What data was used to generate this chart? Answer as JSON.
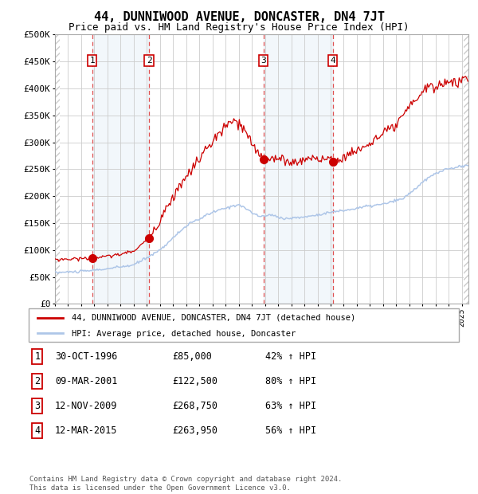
{
  "title": "44, DUNNIWOOD AVENUE, DONCASTER, DN4 7JT",
  "subtitle": "Price paid vs. HM Land Registry's House Price Index (HPI)",
  "title_fontsize": 11,
  "subtitle_fontsize": 9,
  "sale_years_float": [
    1996.833,
    2001.167,
    2009.875,
    2015.167
  ],
  "sale_prices": [
    85000,
    122500,
    268750,
    263950
  ],
  "sale_labels": [
    "1",
    "2",
    "3",
    "4"
  ],
  "legend_entries": [
    "44, DUNNIWOOD AVENUE, DONCASTER, DN4 7JT (detached house)",
    "HPI: Average price, detached house, Doncaster"
  ],
  "table_rows": [
    [
      "1",
      "30-OCT-1996",
      "£85,000",
      "42% ↑ HPI"
    ],
    [
      "2",
      "09-MAR-2001",
      "£122,500",
      "80% ↑ HPI"
    ],
    [
      "3",
      "12-NOV-2009",
      "£268,750",
      "63% ↑ HPI"
    ],
    [
      "4",
      "12-MAR-2015",
      "£263,950",
      "56% ↑ HPI"
    ]
  ],
  "footnote": "Contains HM Land Registry data © Crown copyright and database right 2024.\nThis data is licensed under the Open Government Licence v3.0.",
  "hpi_line_color": "#aec6e8",
  "price_line_color": "#cc0000",
  "dot_color": "#cc0000",
  "dashed_line_color": "#e05050",
  "shade_color": "#ddeeff",
  "grid_color": "#cccccc",
  "ylim": [
    0,
    500000
  ],
  "yticks": [
    0,
    50000,
    100000,
    150000,
    200000,
    250000,
    300000,
    350000,
    400000,
    450000,
    500000
  ],
  "xlim": [
    1994,
    2025.5
  ],
  "xtick_years": [
    1994,
    1995,
    1996,
    1997,
    1998,
    1999,
    2000,
    2001,
    2002,
    2003,
    2004,
    2005,
    2006,
    2007,
    2008,
    2009,
    2010,
    2011,
    2012,
    2013,
    2014,
    2015,
    2016,
    2017,
    2018,
    2019,
    2020,
    2021,
    2022,
    2023,
    2024,
    2025
  ]
}
